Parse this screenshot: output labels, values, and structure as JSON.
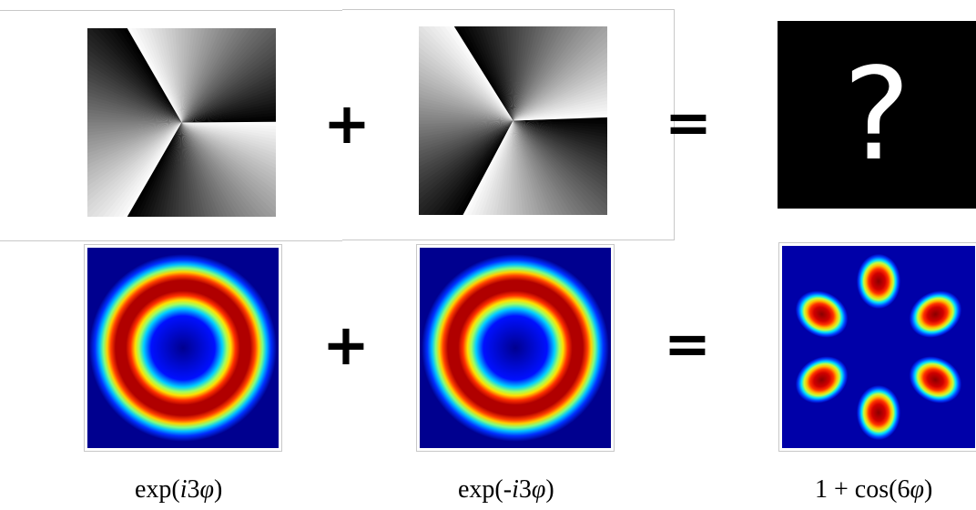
{
  "operators": {
    "top_plus": "+",
    "top_equals": "=",
    "bottom_plus": "+",
    "bottom_equals": "="
  },
  "unknown_result": {
    "symbol": "?"
  },
  "captions": {
    "left": {
      "prefix": "exp(",
      "italic": "i",
      "suffix": "3",
      "phi": "φ",
      "close": ")"
    },
    "middle": {
      "prefix": "exp(-",
      "italic": "i",
      "suffix": "3",
      "phi": "φ",
      "close": ")"
    },
    "right": {
      "prefix": "1 + cos(6",
      "phi": "φ",
      "close": ")"
    }
  },
  "phase_maps": [
    {
      "name": "exp(i3φ)",
      "charge": 3
    },
    {
      "name": "exp(-i3φ)",
      "charge": -3
    }
  ],
  "intensity_maps": {
    "colormap": "jet",
    "ring_charge": 3,
    "petal_count": 6
  },
  "colors": {
    "background": "#ffffff",
    "frame": "#c8c8c8",
    "jet_low": "#00008f",
    "jet_high": "#7f0000",
    "question_bg": "#000000",
    "question_fg": "#ffffff"
  }
}
